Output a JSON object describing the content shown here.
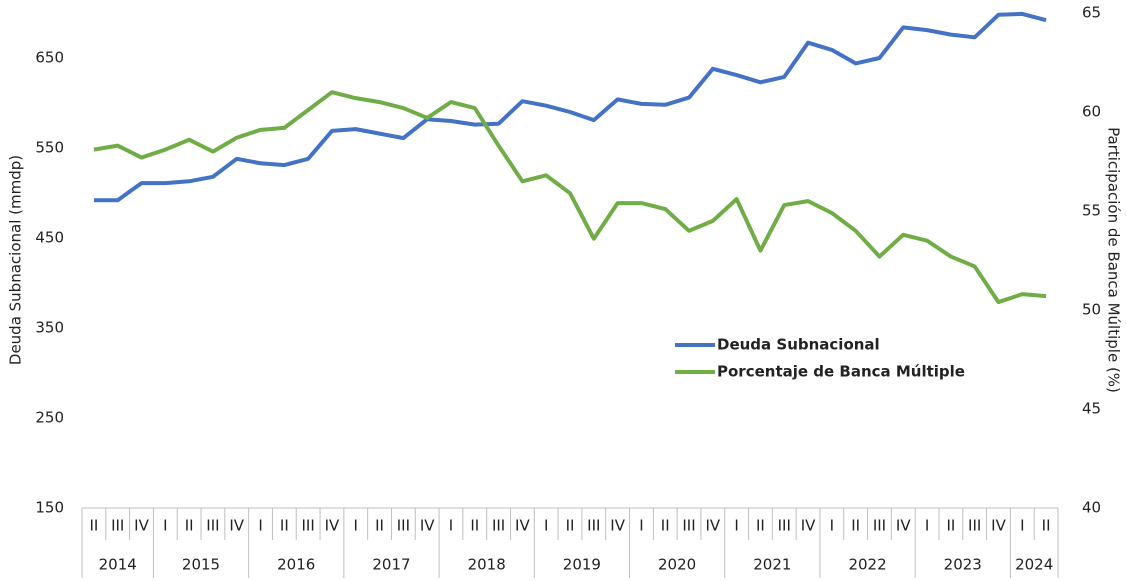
{
  "chart_data": {
    "type": "line",
    "y_label": "Deuda Subnacional (mmdp)",
    "y2_label": "Participación de Banca Múltiple (%)",
    "categories": [
      [
        "2014",
        "II"
      ],
      [
        "2014",
        "III"
      ],
      [
        "2014",
        "IV"
      ],
      [
        "2015",
        "I"
      ],
      [
        "2015",
        "II"
      ],
      [
        "2015",
        "III"
      ],
      [
        "2015",
        "IV"
      ],
      [
        "2016",
        "I"
      ],
      [
        "2016",
        "II"
      ],
      [
        "2016",
        "III"
      ],
      [
        "2016",
        "IV"
      ],
      [
        "2017",
        "I"
      ],
      [
        "2017",
        "II"
      ],
      [
        "2017",
        "III"
      ],
      [
        "2017",
        "IV"
      ],
      [
        "2018",
        "I"
      ],
      [
        "2018",
        "II"
      ],
      [
        "2018",
        "III"
      ],
      [
        "2018",
        "IV"
      ],
      [
        "2019",
        "I"
      ],
      [
        "2019",
        "II"
      ],
      [
        "2019",
        "III"
      ],
      [
        "2019",
        "IV"
      ],
      [
        "2020",
        "I"
      ],
      [
        "2020",
        "II"
      ],
      [
        "2020",
        "III"
      ],
      [
        "2020",
        "IV"
      ],
      [
        "2021",
        "I"
      ],
      [
        "2021",
        "II"
      ],
      [
        "2021",
        "III"
      ],
      [
        "2021",
        "IV"
      ],
      [
        "2022",
        "I"
      ],
      [
        "2022",
        "II"
      ],
      [
        "2022",
        "III"
      ],
      [
        "2022",
        "IV"
      ],
      [
        "2023",
        "I"
      ],
      [
        "2023",
        "II"
      ],
      [
        "2023",
        "III"
      ],
      [
        "2023",
        "IV"
      ],
      [
        "2024",
        "I"
      ],
      [
        "2024",
        "II"
      ]
    ],
    "series": [
      {
        "name": "Deuda Subnacional",
        "color": "#4472c4",
        "axis": "y",
        "values": [
          492,
          492,
          511,
          511,
          513,
          518,
          538,
          533,
          531,
          538,
          569,
          571,
          566,
          561,
          582,
          580,
          576,
          577,
          602,
          597,
          590,
          581,
          604,
          599,
          598,
          606,
          638,
          631,
          623,
          629,
          667,
          659,
          644,
          650,
          684,
          681,
          676,
          673,
          698,
          699,
          692
        ]
      },
      {
        "name": "Porcentaje de Banca Múltiple",
        "color": "#70ad47",
        "axis": "y2",
        "values": [
          58.1,
          58.3,
          57.7,
          58.1,
          58.6,
          58.0,
          58.7,
          59.1,
          59.2,
          60.1,
          61.0,
          60.7,
          60.5,
          60.2,
          59.7,
          60.5,
          60.2,
          58.3,
          56.5,
          56.8,
          55.9,
          53.6,
          55.4,
          55.4,
          55.1,
          54.0,
          54.5,
          55.6,
          53.0,
          55.3,
          55.5,
          54.9,
          54.0,
          52.7,
          53.8,
          53.5,
          52.7,
          52.2,
          50.4,
          50.8,
          50.7
        ]
      }
    ],
    "ylim": [
      150,
      700
    ],
    "yticks": [
      150,
      250,
      350,
      450,
      550,
      650
    ],
    "y2lim": [
      40,
      65
    ],
    "y2ticks": [
      40,
      45,
      50,
      55,
      60,
      65
    ],
    "grid": false
  }
}
